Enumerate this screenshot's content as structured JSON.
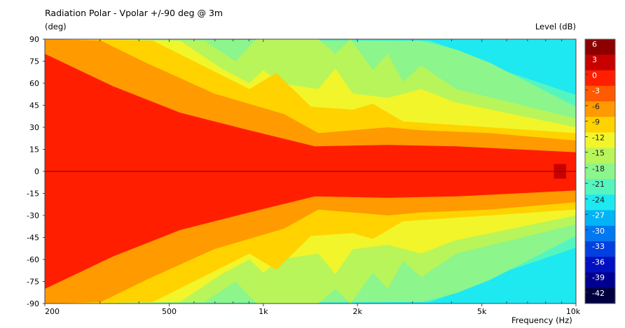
{
  "chart_data": {
    "type": "heatmap",
    "title": "Radiation Polar - Vpolar +/-90 deg @ 3m",
    "ylabel": "(deg)",
    "xlabel": "Frequency  (Hz)",
    "colorbar_label": "Level  (dB)",
    "x_scale": "log",
    "xlim": [
      200,
      10000
    ],
    "ylim": [
      -90,
      90
    ],
    "x_ticks": [
      {
        "v": 200,
        "label": "200"
      },
      {
        "v": 500,
        "label": "500"
      },
      {
        "v": 1000,
        "label": "1k"
      },
      {
        "v": 2000,
        "label": "2k"
      },
      {
        "v": 5000,
        "label": "5k"
      },
      {
        "v": 10000,
        "label": "10k"
      }
    ],
    "x_minor_ticks": [
      300,
      400,
      600,
      700,
      800,
      900,
      3000,
      4000,
      6000,
      7000,
      8000,
      9000
    ],
    "y_ticks": [
      90,
      75,
      60,
      45,
      30,
      15,
      0,
      -15,
      -30,
      -45,
      -60,
      -75,
      -90
    ],
    "colorbar_ticks": [
      6,
      3,
      0,
      -3,
      -6,
      -9,
      -12,
      -15,
      -18,
      -21,
      -24,
      -27,
      -30,
      -33,
      -36,
      -39,
      -42
    ],
    "colorbar_colors": [
      "#8c0000",
      "#c80000",
      "#ff1e00",
      "#ff5a00",
      "#ff9a00",
      "#ffd200",
      "#f2f52a",
      "#b8f55a",
      "#8cf58c",
      "#55f5c0",
      "#1ee8f0",
      "#00b4f5",
      "#0078f0",
      "#0040e0",
      "#0010c0",
      "#000090",
      "#000040"
    ],
    "symmetric": true,
    "contour_levels": [
      {
        "level": -24,
        "color": "#1ee8f0",
        "angle_vs_freq": [
          [
            200,
            90
          ],
          [
            7000,
            89
          ],
          [
            8500,
            82
          ],
          [
            10000,
            80
          ]
        ]
      },
      {
        "level": -21,
        "color": "#55f5c0",
        "angle_vs_freq": [
          [
            200,
            90
          ],
          [
            3400,
            89
          ],
          [
            4500,
            80
          ],
          [
            6000,
            68
          ],
          [
            10000,
            52
          ]
        ]
      },
      {
        "level": -18,
        "color": "#8cf58c",
        "angle_vs_freq": [
          [
            200,
            90
          ],
          [
            3200,
            89
          ],
          [
            4140,
            83
          ],
          [
            5300,
            74
          ],
          [
            10000,
            44
          ]
        ]
      },
      {
        "level": -15,
        "color": "#b8f55a",
        "angle_vs_freq": [
          [
            200,
            90
          ],
          [
            646,
            89
          ],
          [
            815,
            75
          ],
          [
            950,
            90
          ],
          [
            1500,
            90
          ],
          [
            1700,
            80
          ],
          [
            1900,
            90
          ],
          [
            2240,
            69
          ],
          [
            2500,
            80
          ],
          [
            2800,
            61
          ],
          [
            3200,
            72
          ],
          [
            4140,
            56
          ],
          [
            10000,
            36
          ]
        ]
      },
      {
        "level": -12,
        "color": "#f2f52a",
        "angle_vs_freq": [
          [
            200,
            90
          ],
          [
            540,
            89
          ],
          [
            735,
            70
          ],
          [
            903,
            60
          ],
          [
            1000,
            69
          ],
          [
            1130,
            60
          ],
          [
            1500,
            56
          ],
          [
            1700,
            70
          ],
          [
            1930,
            53
          ],
          [
            2500,
            50
          ],
          [
            3200,
            56
          ],
          [
            4100,
            47
          ],
          [
            10000,
            30
          ]
        ]
      },
      {
        "level": -9,
        "color": "#ffd200",
        "angle_vs_freq": [
          [
            200,
            90
          ],
          [
            443,
            89
          ],
          [
            903,
            56
          ],
          [
            1100,
            67
          ],
          [
            1420,
            44
          ],
          [
            1930,
            42
          ],
          [
            2240,
            46
          ],
          [
            2800,
            34
          ],
          [
            10000,
            26
          ]
        ]
      },
      {
        "level": -6,
        "color": "#ff9a00",
        "angle_vs_freq": [
          [
            200,
            90
          ],
          [
            302,
            89
          ],
          [
            421,
            74
          ],
          [
            696,
            53
          ],
          [
            1164,
            39
          ],
          [
            1500,
            26
          ],
          [
            2500,
            30
          ],
          [
            3200,
            28
          ],
          [
            5300,
            26
          ],
          [
            10000,
            21
          ]
        ]
      },
      {
        "level": -3,
        "color": "#ff5a00",
        "angle_vs_freq": [
          [
            200,
            80
          ],
          [
            330,
            58
          ],
          [
            540,
            40
          ],
          [
            900,
            28
          ],
          [
            1460,
            17
          ],
          [
            2500,
            18
          ],
          [
            4140,
            17
          ],
          [
            10000,
            13
          ]
        ]
      }
    ],
    "inner_color": "#ff1e00",
    "peak_region": {
      "freq": [
        8500,
        9300
      ],
      "angle": [
        -5,
        5
      ],
      "color": "#c80000"
    }
  }
}
